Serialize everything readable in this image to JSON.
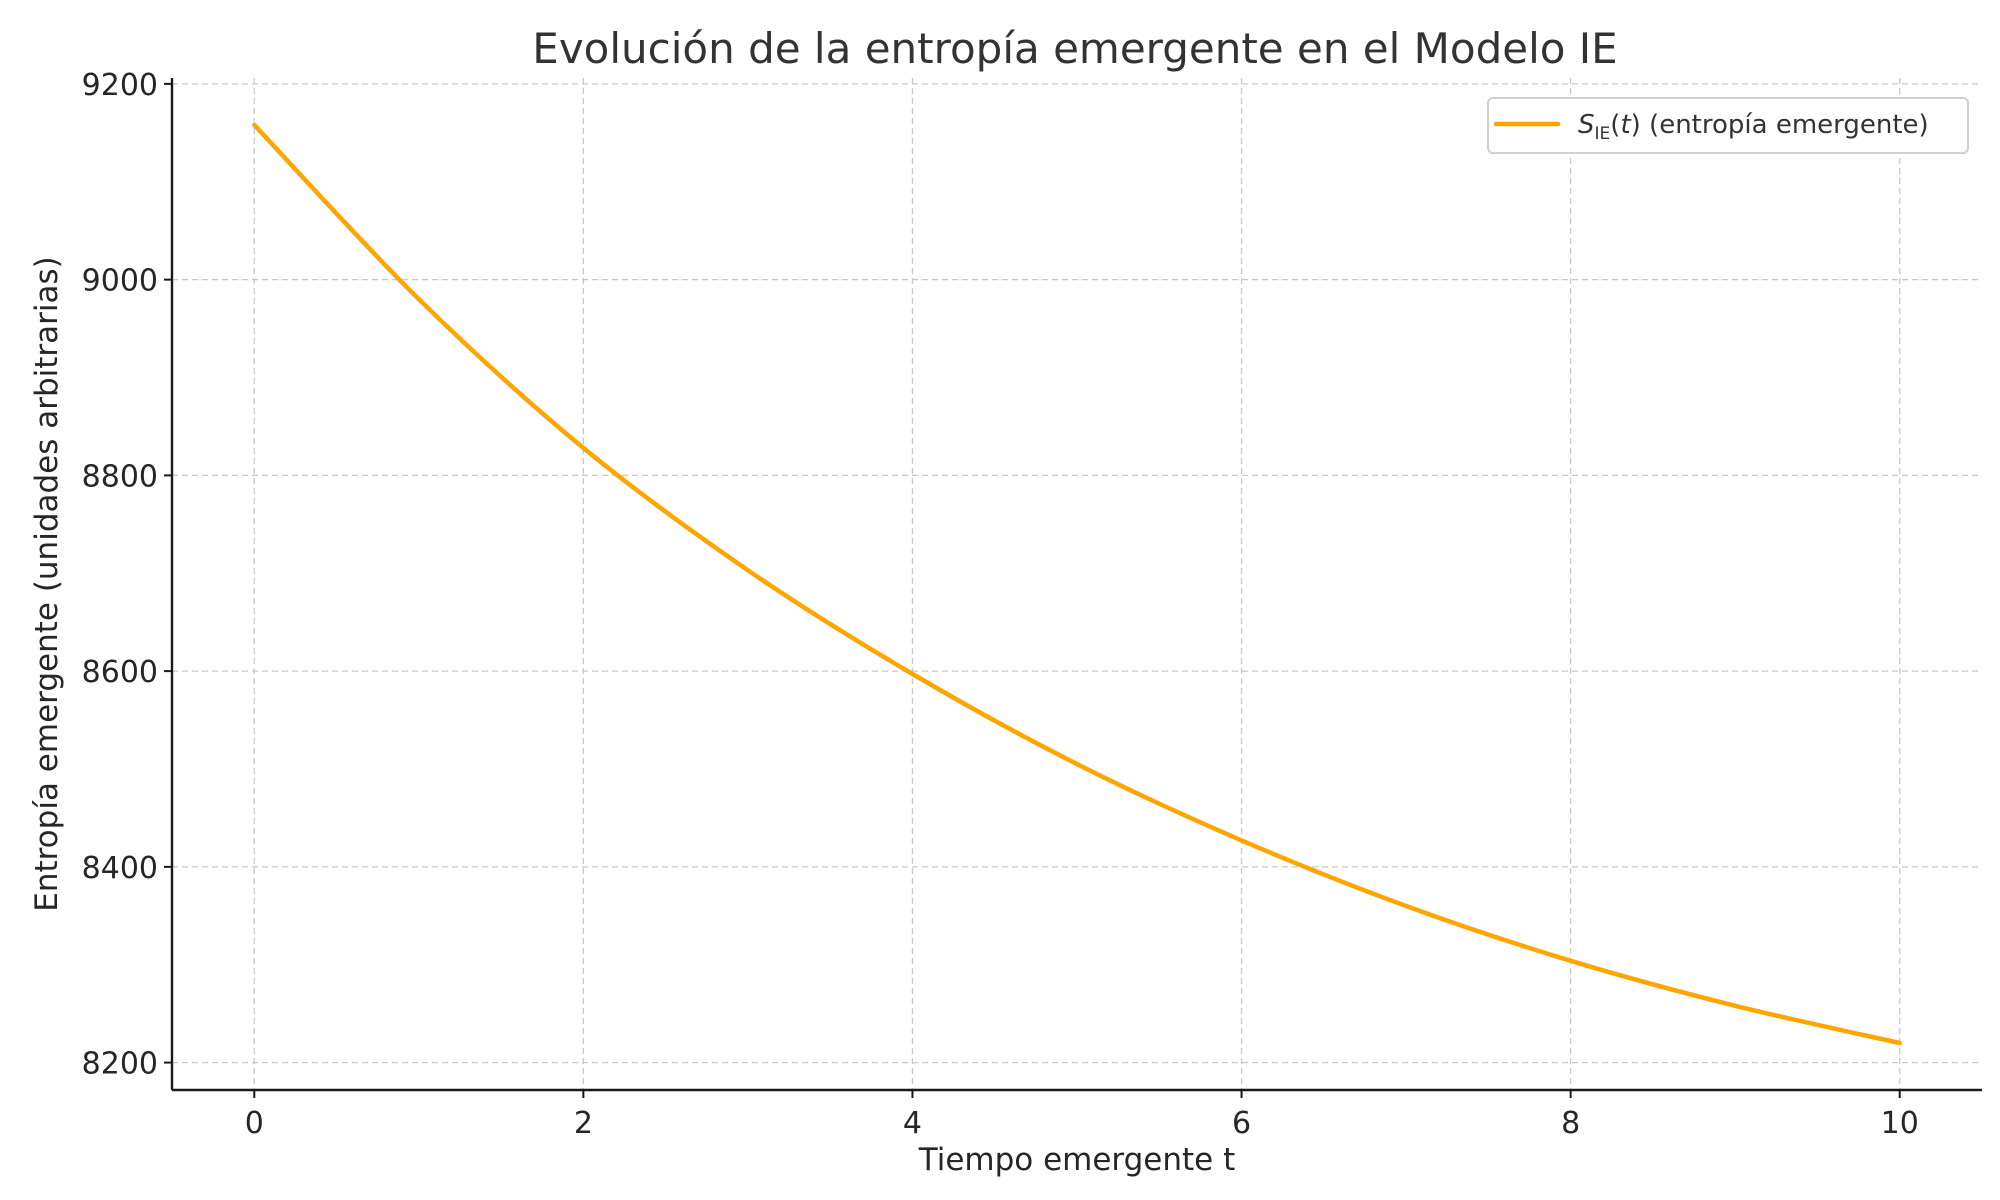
{
  "chart_data": {
    "type": "line",
    "title": "Evolución de la entropía emergente en el Modelo IE",
    "xlabel": "Tiempo emergente t",
    "ylabel": "Entropía emergente (unidades arbitrarias)",
    "xlim": [
      -0.5,
      10.5
    ],
    "ylim": [
      8172,
      9206
    ],
    "xticks": [
      0,
      2,
      4,
      6,
      8,
      10
    ],
    "yticks": [
      8200,
      8400,
      8600,
      8800,
      9000,
      9200
    ],
    "grid": true,
    "legend_position": "top-right",
    "series": [
      {
        "name_parts": {
          "symbol": "S",
          "subscript": "IE",
          "paren_open": "(",
          "variable": "t",
          "paren_close": ")",
          "suffix": " (entropía emergente)"
        },
        "color": "#ffa500",
        "x": [
          0,
          1,
          2,
          3,
          4,
          5,
          6,
          7,
          8,
          9,
          10
        ],
        "y": [
          9158,
          8980,
          8828,
          8703,
          8597,
          8505,
          8427,
          8360,
          8304,
          8258,
          8220
        ]
      }
    ]
  }
}
